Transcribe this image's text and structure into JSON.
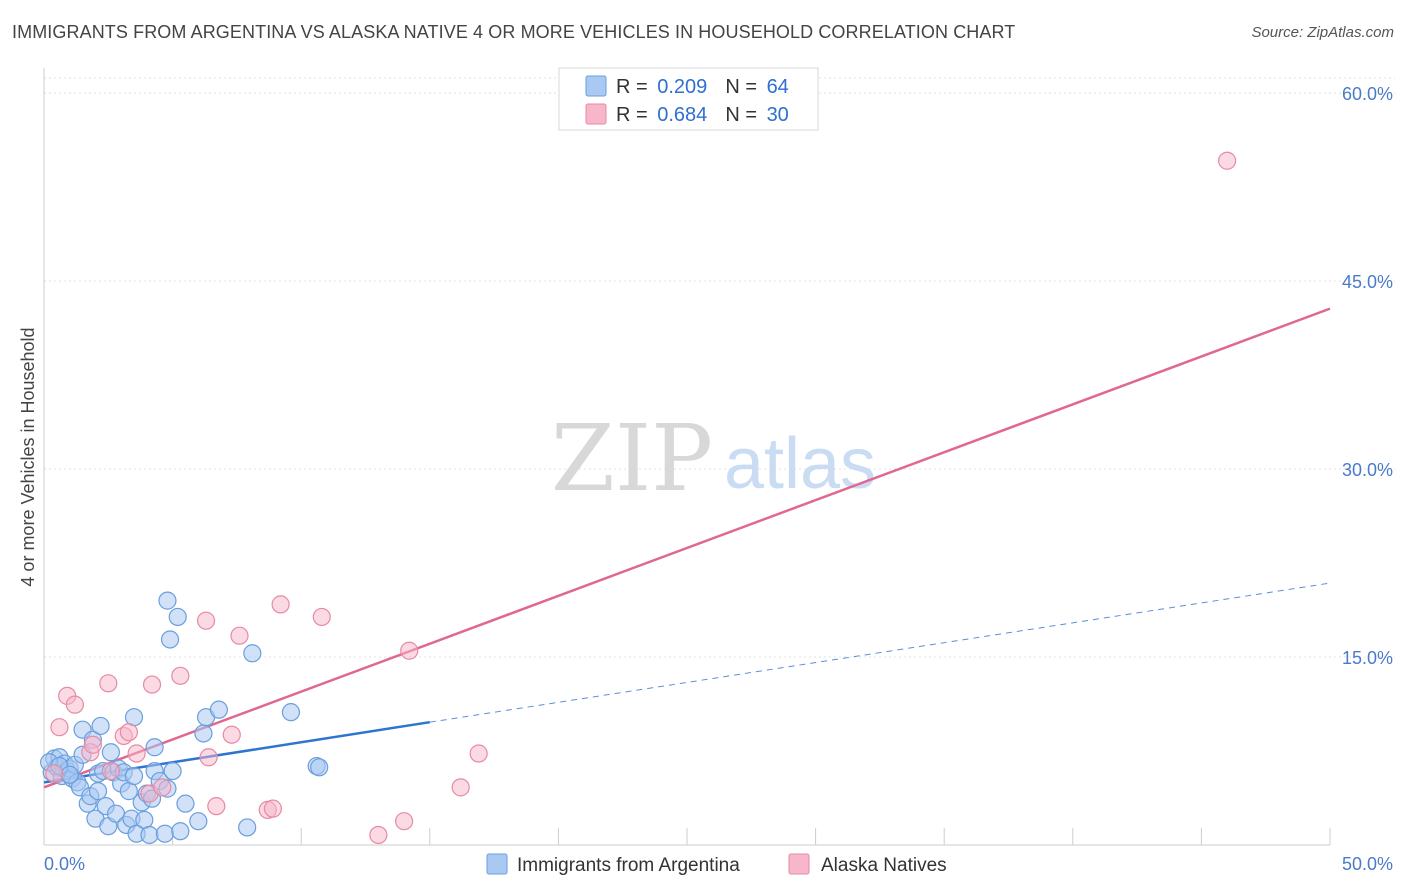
{
  "header": {
    "title": "IMMIGRANTS FROM ARGENTINA VS ALASKA NATIVE 4 OR MORE VEHICLES IN HOUSEHOLD CORRELATION CHART",
    "source": "Source: ZipAtlas.com"
  },
  "watermark": {
    "zip": "ZIP",
    "atlas": "atlas"
  },
  "legend": {
    "rows": [
      {
        "r_label": "R = ",
        "r_value": "0.209",
        "n_label": "N = ",
        "n_value": "64",
        "color": "#a9c9f2"
      },
      {
        "r_label": "R = ",
        "r_value": "0.684",
        "n_label": "N = ",
        "n_value": "30",
        "color": "#f7b6c9"
      }
    ]
  },
  "colors": {
    "blue_fill": "#a9c9f2",
    "blue_stroke": "#6a9fdc",
    "blue_line": "#2f74d0",
    "pink_fill": "#f7b6c9",
    "pink_stroke": "#e68aa6",
    "pink_line": "#e0688f",
    "grid": "#e0e0e0",
    "axis_text": "#4a7bc8"
  },
  "chart_data": {
    "type": "scatter",
    "title": "IMMIGRANTS FROM ARGENTINA VS ALASKA NATIVE 4 OR MORE VEHICLES IN HOUSEHOLD CORRELATION CHART",
    "xlabel": "",
    "ylabel": "4 or more Vehicles in Household",
    "xlim": [
      0,
      50
    ],
    "ylim": [
      0,
      62
    ],
    "x_tick_labels": [
      "0.0%",
      "50.0%"
    ],
    "y_ticks": [
      15,
      30,
      45,
      60
    ],
    "y_tick_labels": [
      "15.0%",
      "30.0%",
      "45.0%",
      "60.0%"
    ],
    "series": [
      {
        "name": "Immigrants from Argentina",
        "points": [
          [
            0.3,
            5.8
          ],
          [
            0.4,
            6.9
          ],
          [
            0.5,
            6.2
          ],
          [
            0.6,
            7.0
          ],
          [
            0.7,
            5.5
          ],
          [
            0.8,
            6.5
          ],
          [
            0.9,
            5.9
          ],
          [
            1.0,
            6.1
          ],
          [
            1.1,
            5.3
          ],
          [
            1.2,
            6.4
          ],
          [
            1.3,
            5.0
          ],
          [
            1.4,
            4.6
          ],
          [
            1.5,
            7.2
          ],
          [
            1.5,
            9.2
          ],
          [
            1.7,
            3.3
          ],
          [
            1.8,
            3.9
          ],
          [
            1.9,
            8.4
          ],
          [
            2.0,
            2.1
          ],
          [
            2.1,
            4.3
          ],
          [
            2.1,
            5.7
          ],
          [
            2.2,
            9.5
          ],
          [
            2.3,
            5.9
          ],
          [
            2.4,
            3.1
          ],
          [
            2.5,
            1.5
          ],
          [
            2.6,
            7.4
          ],
          [
            2.7,
            5.8
          ],
          [
            2.8,
            2.5
          ],
          [
            2.9,
            6.1
          ],
          [
            3.0,
            4.9
          ],
          [
            3.1,
            5.8
          ],
          [
            3.2,
            1.6
          ],
          [
            3.3,
            4.3
          ],
          [
            3.4,
            2.1
          ],
          [
            3.5,
            5.5
          ],
          [
            3.5,
            10.2
          ],
          [
            3.6,
            0.9
          ],
          [
            3.8,
            3.4
          ],
          [
            3.9,
            2.0
          ],
          [
            4.0,
            4.1
          ],
          [
            4.1,
            0.8
          ],
          [
            4.2,
            3.7
          ],
          [
            4.3,
            7.8
          ],
          [
            4.3,
            5.9
          ],
          [
            4.5,
            5.1
          ],
          [
            4.7,
            0.9
          ],
          [
            4.8,
            4.5
          ],
          [
            4.8,
            19.5
          ],
          [
            4.9,
            16.4
          ],
          [
            5.0,
            5.9
          ],
          [
            5.2,
            18.2
          ],
          [
            5.3,
            1.1
          ],
          [
            5.5,
            3.3
          ],
          [
            6.0,
            1.9
          ],
          [
            6.2,
            8.9
          ],
          [
            6.3,
            10.2
          ],
          [
            6.8,
            10.8
          ],
          [
            7.9,
            1.4
          ],
          [
            8.1,
            15.3
          ],
          [
            9.6,
            10.6
          ],
          [
            10.6,
            6.3
          ],
          [
            10.7,
            6.2
          ],
          [
            0.2,
            6.6
          ],
          [
            0.6,
            6.3
          ],
          [
            1.0,
            5.6
          ]
        ],
        "trend": {
          "x": [
            0,
            15
          ],
          "y": [
            5.0,
            9.8
          ],
          "extended_to": [
            50,
            20.9
          ]
        }
      },
      {
        "name": "Alaska Natives",
        "points": [
          [
            0.4,
            5.7
          ],
          [
            0.6,
            9.4
          ],
          [
            0.9,
            11.9
          ],
          [
            1.2,
            11.2
          ],
          [
            1.8,
            7.4
          ],
          [
            1.9,
            8.0
          ],
          [
            2.5,
            12.9
          ],
          [
            2.6,
            5.9
          ],
          [
            3.1,
            8.7
          ],
          [
            3.3,
            9.0
          ],
          [
            3.6,
            7.3
          ],
          [
            4.1,
            4.1
          ],
          [
            4.2,
            12.8
          ],
          [
            4.6,
            4.6
          ],
          [
            5.3,
            13.5
          ],
          [
            6.3,
            17.9
          ],
          [
            6.4,
            7.0
          ],
          [
            6.7,
            3.1
          ],
          [
            7.3,
            8.8
          ],
          [
            7.6,
            16.7
          ],
          [
            8.7,
            2.8
          ],
          [
            8.9,
            2.9
          ],
          [
            9.2,
            19.2
          ],
          [
            10.8,
            18.2
          ],
          [
            13.0,
            0.8
          ],
          [
            14.0,
            1.9
          ],
          [
            14.2,
            15.5
          ],
          [
            16.2,
            4.6
          ],
          [
            16.9,
            7.3
          ],
          [
            46.0,
            54.6
          ]
        ],
        "trend": {
          "x": [
            0,
            50
          ],
          "y": [
            4.6,
            42.8
          ]
        }
      }
    ],
    "legend_position": "bottom"
  }
}
